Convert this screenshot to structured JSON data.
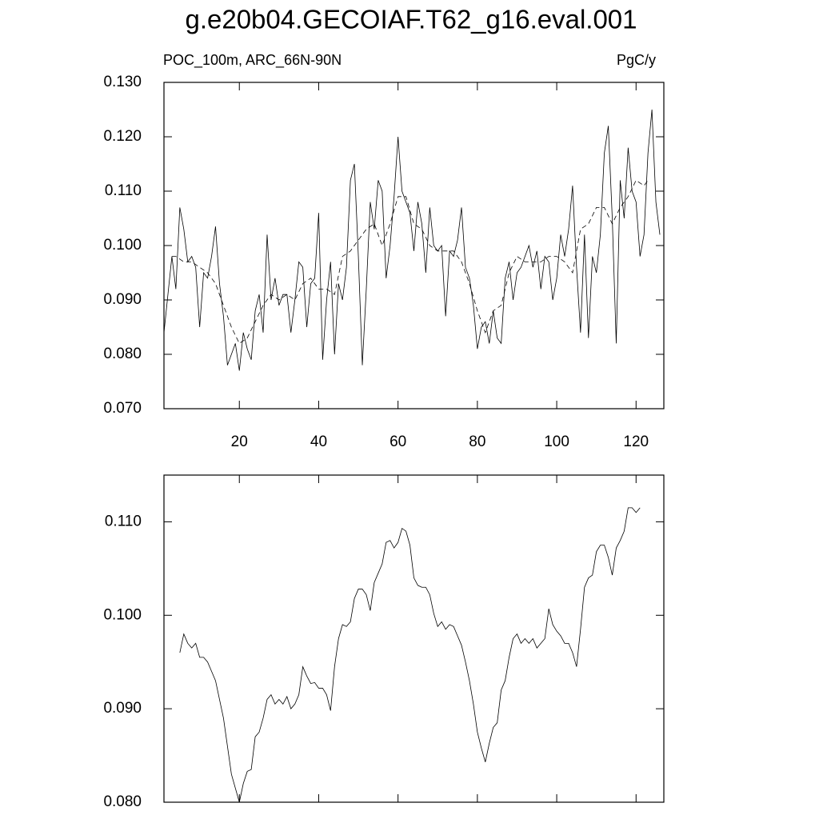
{
  "chart_data": [
    {
      "type": "line",
      "title": "g.e20b04.GECOIAF.T62_g16.eval.001",
      "subtitle_left": "POC_100m, ARC_66N-90N",
      "subtitle_right": "PgC/y",
      "xlim": [
        1,
        127
      ],
      "xticks": [
        20,
        40,
        60,
        80,
        100,
        120
      ],
      "xtick_labels": true,
      "ylim": [
        0.07,
        0.13
      ],
      "yticks": [
        {
          "value": 0.07,
          "label": "0.070"
        },
        {
          "value": 0.08,
          "label": "0.080"
        },
        {
          "value": 0.09,
          "label": "0.090"
        },
        {
          "value": 0.1,
          "label": "0.100"
        },
        {
          "value": 0.11,
          "label": "0.110"
        },
        {
          "value": 0.12,
          "label": "0.120"
        },
        {
          "value": 0.13,
          "label": "0.130"
        }
      ],
      "series": [
        {
          "color": "#000000",
          "dash": false,
          "x": [
            1,
            2,
            3,
            4,
            5,
            6,
            7,
            8,
            9,
            10,
            11,
            12,
            13,
            14,
            15,
            16,
            17,
            18,
            19,
            20,
            21,
            22,
            23,
            24,
            25,
            26,
            27,
            28,
            29,
            30,
            31,
            32,
            33,
            34,
            35,
            36,
            37,
            38,
            39,
            40,
            41,
            42,
            43,
            44,
            45,
            46,
            47,
            48,
            49,
            50,
            51,
            52,
            53,
            54,
            55,
            56,
            57,
            58,
            59,
            60,
            61,
            62,
            63,
            64,
            65,
            66,
            67,
            68,
            69,
            70,
            71,
            72,
            73,
            74,
            75,
            76,
            77,
            78,
            79,
            80,
            81,
            82,
            83,
            84,
            85,
            86,
            87,
            88,
            89,
            90,
            91,
            92,
            93,
            94,
            95,
            96,
            97,
            98,
            99,
            100,
            101,
            102,
            103,
            104,
            105,
            106,
            107,
            108,
            109,
            110,
            111,
            112,
            113,
            114,
            115,
            116,
            117,
            118,
            119,
            120,
            121,
            122,
            123,
            124,
            125,
            126
          ],
          "values": [
            0.084,
            0.091,
            0.098,
            0.092,
            0.107,
            0.103,
            0.097,
            0.098,
            0.096,
            0.085,
            0.095,
            0.094,
            0.098,
            0.1035,
            0.093,
            0.087,
            0.078,
            0.08,
            0.082,
            0.077,
            0.084,
            0.081,
            0.079,
            0.088,
            0.091,
            0.084,
            0.102,
            0.09,
            0.094,
            0.089,
            0.091,
            0.091,
            0.084,
            0.09,
            0.097,
            0.096,
            0.085,
            0.093,
            0.094,
            0.106,
            0.079,
            0.09,
            0.097,
            0.08,
            0.093,
            0.09,
            0.096,
            0.112,
            0.115,
            0.098,
            0.078,
            0.092,
            0.108,
            0.103,
            0.112,
            0.11,
            0.094,
            0.1,
            0.109,
            0.12,
            0.11,
            0.108,
            0.106,
            0.099,
            0.108,
            0.104,
            0.095,
            0.107,
            0.1,
            0.099,
            0.1,
            0.087,
            0.099,
            0.098,
            0.101,
            0.107,
            0.096,
            0.094,
            0.089,
            0.081,
            0.085,
            0.086,
            0.082,
            0.088,
            0.083,
            0.082,
            0.094,
            0.097,
            0.09,
            0.095,
            0.096,
            0.098,
            0.1,
            0.096,
            0.099,
            0.092,
            0.098,
            0.097,
            0.09,
            0.094,
            0.102,
            0.098,
            0.103,
            0.111,
            0.096,
            0.084,
            0.102,
            0.083,
            0.098,
            0.095,
            0.102,
            0.117,
            0.122,
            0.105,
            0.082,
            0.112,
            0.105,
            0.118,
            0.11,
            0.108,
            0.098,
            0.102,
            0.117,
            0.125,
            0.108,
            0.102
          ]
        },
        {
          "color": "#000000",
          "dash": true,
          "x": [
            3,
            4,
            6,
            8,
            10,
            12,
            14,
            16,
            18,
            20,
            22,
            24,
            26,
            28,
            30,
            32,
            34,
            36,
            38,
            40,
            42,
            44,
            46,
            48,
            50,
            52,
            54,
            56,
            58,
            60,
            62,
            64,
            66,
            68,
            70,
            72,
            74,
            76,
            78,
            80,
            82,
            84,
            86,
            88,
            90,
            92,
            94,
            96,
            98,
            100,
            102,
            104,
            106,
            108,
            110,
            112,
            114,
            116,
            118,
            120,
            122,
            123
          ],
          "values": [
            0.098,
            0.098,
            0.097,
            0.097,
            0.096,
            0.095,
            0.093,
            0.089,
            0.085,
            0.082,
            0.083,
            0.086,
            0.089,
            0.091,
            0.09,
            0.091,
            0.09,
            0.093,
            0.094,
            0.092,
            0.092,
            0.091,
            0.098,
            0.099,
            0.101,
            0.103,
            0.104,
            0.1,
            0.104,
            0.109,
            0.109,
            0.104,
            0.103,
            0.1,
            0.099,
            0.099,
            0.099,
            0.097,
            0.093,
            0.088,
            0.084,
            0.088,
            0.089,
            0.095,
            0.098,
            0.097,
            0.097,
            0.097,
            0.098,
            0.098,
            0.097,
            0.095,
            0.103,
            0.104,
            0.107,
            0.107,
            0.104,
            0.107,
            0.109,
            0.112,
            0.111,
            0.112
          ]
        }
      ]
    },
    {
      "type": "line",
      "xlim": [
        1,
        127
      ],
      "xticks": [
        20,
        40,
        60,
        80,
        100,
        120
      ],
      "xtick_labels": false,
      "ylim": [
        0.08,
        0.115
      ],
      "yticks": [
        {
          "value": 0.08,
          "label": "0.080"
        },
        {
          "value": 0.09,
          "label": "0.090"
        },
        {
          "value": 0.1,
          "label": "0.100"
        },
        {
          "value": 0.11,
          "label": "0.110"
        }
      ],
      "series": [
        {
          "color": "#000000",
          "dash": false,
          "x": [
            5,
            6,
            7,
            8,
            9,
            10,
            11,
            12,
            13,
            14,
            15,
            16,
            17,
            18,
            19,
            20,
            21,
            22,
            23,
            24,
            25,
            26,
            27,
            28,
            29,
            30,
            31,
            32,
            33,
            34,
            35,
            36,
            37,
            38,
            39,
            40,
            41,
            42,
            43,
            44,
            45,
            46,
            47,
            48,
            49,
            50,
            51,
            52,
            53,
            54,
            55,
            56,
            57,
            58,
            59,
            60,
            61,
            62,
            63,
            64,
            65,
            66,
            67,
            68,
            69,
            70,
            71,
            72,
            73,
            74,
            75,
            76,
            77,
            78,
            79,
            80,
            81,
            82,
            83,
            84,
            85,
            86,
            87,
            88,
            89,
            90,
            91,
            92,
            93,
            94,
            95,
            96,
            97,
            98,
            99,
            100,
            101,
            102,
            103,
            104,
            105,
            106,
            107,
            108,
            109,
            110,
            111,
            112,
            113,
            114,
            115,
            116,
            117,
            118,
            119,
            120,
            121
          ],
          "values": [
            0.096,
            0.098,
            0.097,
            0.0965,
            0.097,
            0.0955,
            0.0955,
            0.095,
            0.094,
            0.093,
            0.091,
            0.089,
            0.086,
            0.083,
            0.0815,
            0.08,
            0.082,
            0.0833,
            0.0835,
            0.087,
            0.0875,
            0.089,
            0.091,
            0.0915,
            0.0905,
            0.091,
            0.0905,
            0.0913,
            0.09,
            0.0905,
            0.0915,
            0.0945,
            0.0935,
            0.0927,
            0.0928,
            0.0922,
            0.0922,
            0.0915,
            0.0898,
            0.0945,
            0.0975,
            0.099,
            0.0988,
            0.0993,
            0.1018,
            0.1028,
            0.1028,
            0.1022,
            0.1005,
            0.1035,
            0.1045,
            0.1055,
            0.1078,
            0.108,
            0.1072,
            0.1078,
            0.1093,
            0.109,
            0.1075,
            0.104,
            0.1032,
            0.103,
            0.103,
            0.1022,
            0.1002,
            0.0988,
            0.0993,
            0.0985,
            0.099,
            0.0988,
            0.0978,
            0.0968,
            0.095,
            0.093,
            0.0905,
            0.0875,
            0.0858,
            0.0843,
            0.0863,
            0.088,
            0.0885,
            0.092,
            0.093,
            0.0955,
            0.0975,
            0.098,
            0.097,
            0.0975,
            0.097,
            0.0975,
            0.0965,
            0.097,
            0.0975,
            0.1007,
            0.099,
            0.0983,
            0.0978,
            0.097,
            0.097,
            0.096,
            0.0945,
            0.0985,
            0.103,
            0.104,
            0.1043,
            0.1068,
            0.1075,
            0.1075,
            0.1062,
            0.1043,
            0.1072,
            0.108,
            0.109,
            0.1115,
            0.1115,
            0.111,
            0.1115
          ]
        }
      ]
    }
  ]
}
